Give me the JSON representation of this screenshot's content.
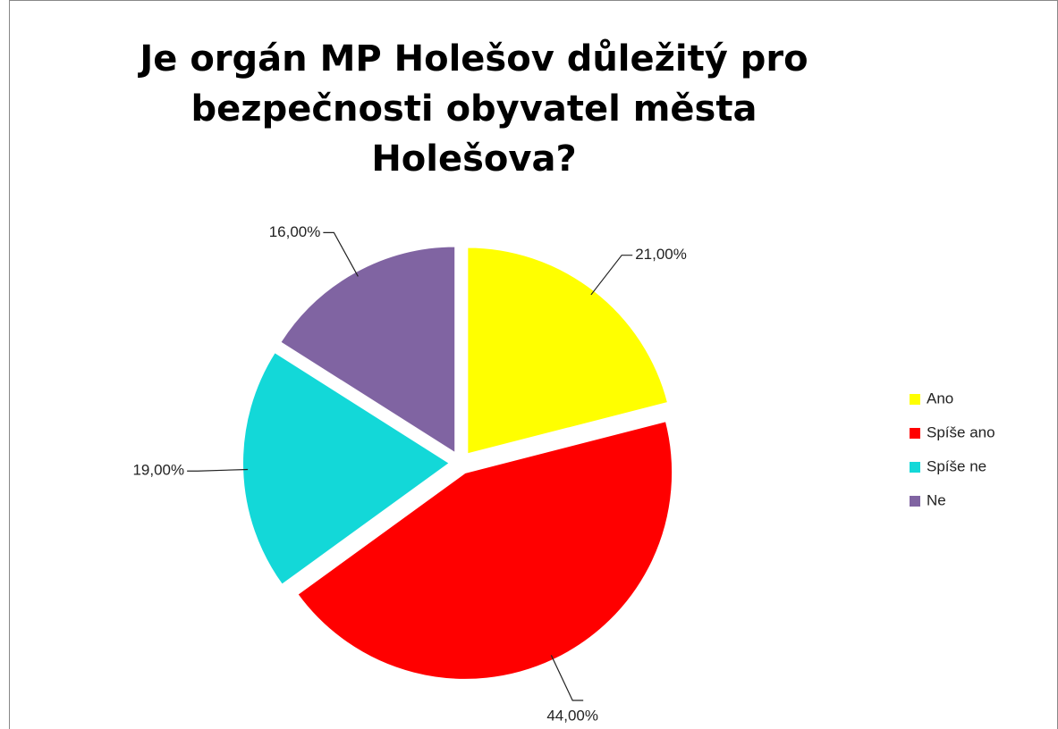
{
  "chart_data": {
    "type": "pie",
    "title": "Je orgán MP Holešov důležitý pro bezpečnosti obyvatel města Holešova?",
    "categories": [
      "Ano",
      "Spíše ano",
      "Spíše ne",
      "Ne"
    ],
    "values": [
      21,
      44,
      19,
      16
    ],
    "value_labels": [
      "21,00%",
      "44,00%",
      "19,00%",
      "16,00%"
    ],
    "colors": [
      "#ffff00",
      "#ff0000",
      "#13d8d8",
      "#8064a2"
    ],
    "legend": "right"
  }
}
